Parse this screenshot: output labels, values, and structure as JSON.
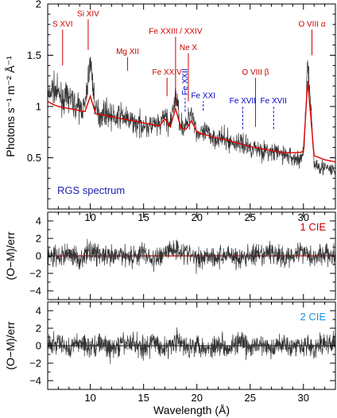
{
  "chart_data": [
    {
      "type": "line",
      "panel": "spectrum",
      "annotation": "RGS spectrum",
      "xlabel": "Wavelength (Å)",
      "ylabel": "Photons s⁻¹ m⁻² Å⁻¹",
      "xlim": [
        6,
        33
      ],
      "ylim": [
        0,
        2
      ],
      "x_ticks": [
        10,
        15,
        20,
        25,
        30
      ],
      "x_tick_labels": [
        "10",
        "15",
        "20",
        "25",
        "30"
      ],
      "y_ticks": [
        0.5,
        1,
        1.5,
        2
      ],
      "y_tick_labels": [
        "0.5",
        "1",
        "1.5",
        "2"
      ],
      "series": [
        {
          "role": "data",
          "color": "#333333",
          "x": [
            6.0,
            6.5,
            7.0,
            7.5,
            8.0,
            8.5,
            9.0,
            9.5,
            10.0,
            10.5,
            11.0,
            11.5,
            12.0,
            12.5,
            13.0,
            13.5,
            14.0,
            14.5,
            15.0,
            15.5,
            16.0,
            16.5,
            17.0,
            17.5,
            18.0,
            18.5,
            19.0,
            19.5,
            20.0,
            20.5,
            21.0,
            21.5,
            22.0,
            22.5,
            23.0,
            23.5,
            24.0,
            24.5,
            25.0,
            25.5,
            26.0,
            26.5,
            27.0,
            27.5,
            28.0,
            28.5,
            29.0,
            29.5,
            30.0,
            30.4,
            31.0,
            31.5,
            32.0,
            32.5,
            33.0
          ],
          "y": [
            1.08,
            1.18,
            1.12,
            1.06,
            1.1,
            1.02,
            0.98,
            1.0,
            1.45,
            0.96,
            0.92,
            0.95,
            0.9,
            0.88,
            0.92,
            0.86,
            0.85,
            0.82,
            0.83,
            0.8,
            0.82,
            0.8,
            0.92,
            0.8,
            1.12,
            0.82,
            0.8,
            0.97,
            0.75,
            0.72,
            0.74,
            0.7,
            0.7,
            0.68,
            0.66,
            0.64,
            0.65,
            0.62,
            0.6,
            0.6,
            0.58,
            0.56,
            0.55,
            0.55,
            0.54,
            0.52,
            0.5,
            0.48,
            0.52,
            1.43,
            0.45,
            0.42,
            0.4,
            0.38,
            0.37
          ]
        },
        {
          "role": "model",
          "color": "#e00000",
          "x": [
            6.0,
            6.5,
            7.0,
            7.5,
            8.0,
            8.5,
            9.0,
            9.5,
            10.0,
            10.5,
            11.0,
            11.5,
            12.0,
            12.5,
            13.0,
            13.5,
            14.0,
            14.5,
            15.0,
            15.5,
            16.0,
            16.5,
            17.0,
            17.5,
            18.0,
            18.5,
            19.0,
            19.5,
            20.0,
            20.5,
            21.0,
            21.5,
            22.0,
            22.5,
            23.0,
            23.5,
            24.0,
            24.5,
            25.0,
            25.5,
            26.0,
            26.5,
            27.0,
            27.5,
            28.0,
            28.5,
            29.0,
            29.5,
            30.0,
            30.4,
            31.0,
            31.5,
            32.0,
            32.5,
            33.0
          ],
          "y": [
            1.05,
            1.02,
            1.0,
            0.99,
            0.98,
            0.97,
            0.96,
            0.95,
            1.1,
            0.93,
            0.92,
            0.91,
            0.9,
            0.89,
            0.88,
            0.87,
            0.86,
            0.85,
            0.84,
            0.83,
            0.82,
            0.81,
            0.88,
            0.8,
            0.98,
            0.79,
            0.78,
            0.86,
            0.75,
            0.73,
            0.72,
            0.7,
            0.69,
            0.68,
            0.67,
            0.65,
            0.64,
            0.62,
            0.61,
            0.6,
            0.59,
            0.58,
            0.57,
            0.56,
            0.55,
            0.55,
            0.55,
            0.55,
            0.56,
            1.25,
            0.52,
            0.5,
            0.48,
            0.47,
            0.46
          ]
        }
      ],
      "line_labels": [
        {
          "text": "S XVI",
          "x": 7.4,
          "color": "#cc0000",
          "tick": [
            1.4,
            1.75
          ]
        },
        {
          "text": "Si XIV",
          "x": 9.8,
          "color": "#cc0000",
          "tick": [
            1.55,
            1.85
          ]
        },
        {
          "text": "Mg XII",
          "x": 13.5,
          "color": "#cc0000",
          "tick": [
            1.35,
            1.48
          ]
        },
        {
          "text": "Fe XXIII / XXIV",
          "x": 18.0,
          "color": "#cc0000",
          "tick": [
            1.0,
            1.68
          ]
        },
        {
          "text": "Ne X",
          "x": 19.2,
          "color": "#cc0000",
          "tick": [
            1.05,
            1.52
          ]
        },
        {
          "text": "Fe XXIV",
          "x": 17.2,
          "color": "#cc0000",
          "tick": [
            1.1,
            1.28
          ]
        },
        {
          "text": "Fe XXII",
          "x": 18.9,
          "color": "#0000cc",
          "tick": [
            0.95,
            1.08
          ]
        },
        {
          "text": "Fe XXI",
          "x": 20.6,
          "color": "#0000cc",
          "tick": [
            0.96,
            1.05
          ]
        },
        {
          "text": "O VIII β",
          "x": 25.5,
          "color": "#cc0000",
          "tick": [
            0.8,
            1.28
          ]
        },
        {
          "text": "Fe XVII",
          "x": 24.3,
          "color": "#0000cc",
          "tick": [
            0.78,
            1.0
          ]
        },
        {
          "text": "Fe XVII",
          "x": 27.2,
          "color": "#0000cc",
          "tick": [
            0.78,
            1.0
          ]
        },
        {
          "text": "O VIII α",
          "x": 30.8,
          "color": "#cc0000",
          "tick": [
            1.5,
            1.75
          ]
        }
      ]
    },
    {
      "type": "line",
      "panel": "residuals-1",
      "annotation": "1 CIE",
      "annotation_color": "#cc0000",
      "ylabel": "(O−M)/err",
      "xlim": [
        6,
        33
      ],
      "ylim": [
        -5,
        5
      ],
      "y_ticks": [
        -4,
        -2,
        0,
        2,
        4
      ],
      "y_tick_labels": [
        "−4",
        "−2",
        "0",
        "2",
        "4"
      ],
      "zero_line_color": "#e00000",
      "series": [
        {
          "color": "#333333",
          "x": [
            6.0,
            7.0,
            8.0,
            9.0,
            10.0,
            11.0,
            12.0,
            13.0,
            14.0,
            15.0,
            16.0,
            17.0,
            18.0,
            19.0,
            20.0,
            21.0,
            22.0,
            23.0,
            24.0,
            25.0,
            26.0,
            27.0,
            28.0,
            29.0,
            30.0,
            31.0,
            32.0,
            33.0
          ],
          "y": [
            0.4,
            -0.8,
            1.2,
            -1.5,
            2.0,
            0.3,
            -1.0,
            0.8,
            -0.5,
            1.5,
            -2.2,
            1.8,
            2.8,
            1.3,
            -1.3,
            0.6,
            -0.9,
            1.1,
            -1.6,
            0.5,
            -0.4,
            1.9,
            -1.2,
            0.7,
            2.1,
            -0.6,
            0.9,
            -0.3
          ]
        }
      ]
    },
    {
      "type": "line",
      "panel": "residuals-2",
      "annotation": "2 CIE",
      "annotation_color": "#1e90e0",
      "ylabel": "(O−M)/err",
      "xlabel": "Wavelength (Å)",
      "xlim": [
        6,
        33
      ],
      "ylim": [
        -5,
        5
      ],
      "x_ticks": [
        10,
        15,
        20,
        25,
        30
      ],
      "x_tick_labels": [
        "10",
        "15",
        "20",
        "25",
        "30"
      ],
      "y_ticks": [
        -4,
        -2,
        0,
        2,
        4
      ],
      "y_tick_labels": [
        "−4",
        "−2",
        "0",
        "2",
        "4"
      ],
      "zero_line_color": "#333333",
      "series": [
        {
          "color": "#333333",
          "x": [
            6.0,
            7.0,
            8.0,
            9.0,
            10.0,
            11.0,
            12.0,
            13.0,
            14.0,
            15.0,
            16.0,
            17.0,
            18.0,
            19.0,
            20.0,
            21.0,
            22.0,
            23.0,
            24.0,
            25.0,
            26.0,
            27.0,
            28.0,
            29.0,
            30.0,
            31.0,
            32.0,
            33.0
          ],
          "y": [
            -0.3,
            0.9,
            -1.1,
            1.4,
            -0.6,
            1.0,
            -1.7,
            0.5,
            1.2,
            -0.8,
            1.6,
            -1.4,
            2.4,
            -0.9,
            1.1,
            -1.5,
            0.7,
            -0.4,
            1.3,
            -1.0,
            0.6,
            -1.8,
            1.5,
            -0.5,
            0.8,
            -1.2,
            1.0,
            0.2
          ]
        }
      ]
    }
  ]
}
